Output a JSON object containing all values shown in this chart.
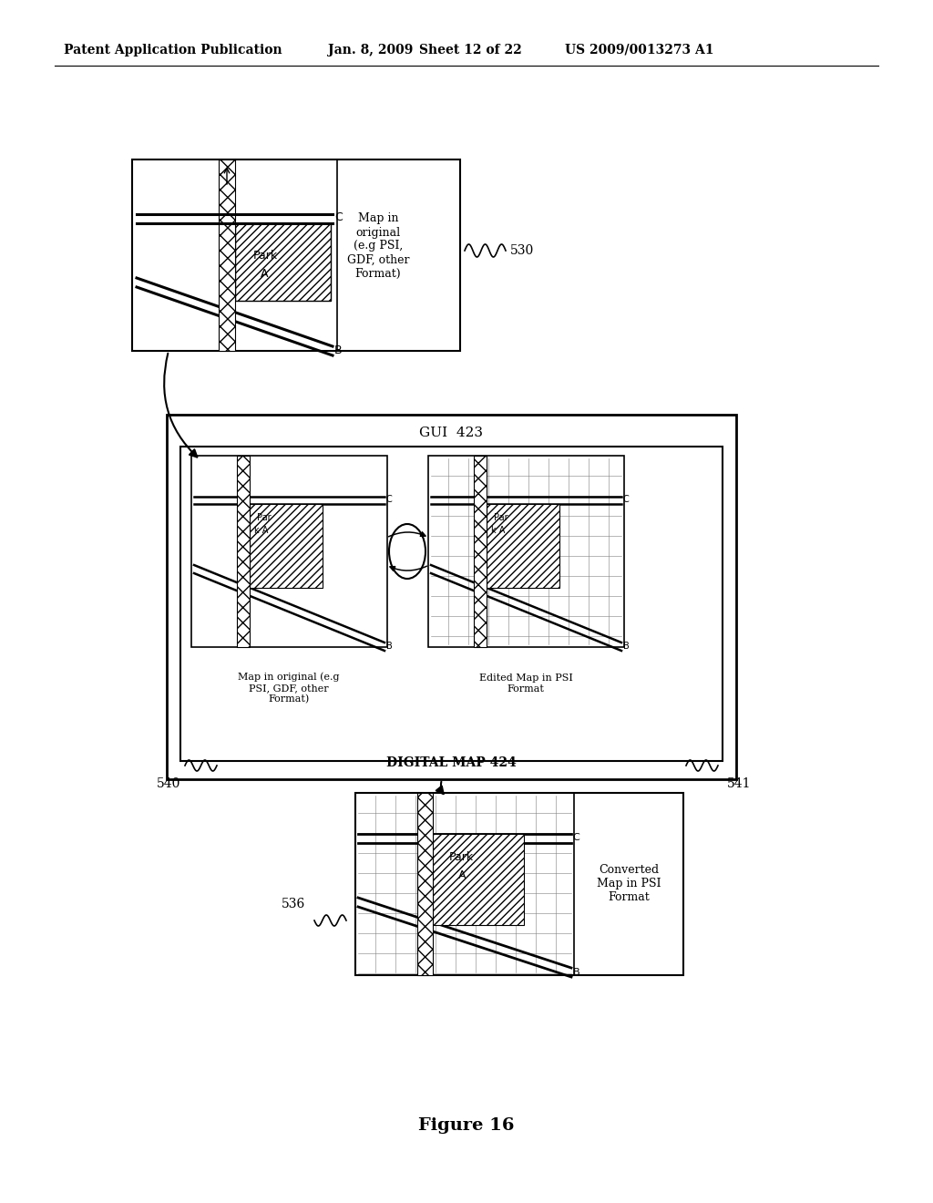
{
  "bg_color": "#ffffff",
  "header_text": "Patent Application Publication",
  "header_date": "Jan. 8, 2009",
  "header_sheet": "Sheet 12 of 22",
  "header_patent": "US 2009/0013273 A1",
  "figure_label": "Figure 16",
  "label_530": "530",
  "label_540": "540",
  "label_541": "541",
  "label_536": "536",
  "label_gui": "GUI  423",
  "label_digital_map": "DIGITAL MAP 424",
  "box1_text": "Map in\noriginal\n(e.g PSI,\nGDF, other\nFormat)",
  "box_original_text": "Map in original (e.g\nPSI, GDF, other\nFormat)",
  "box_edited_text": "Edited Map in PSI\nFormat",
  "converted_text": "Converted\nMap in PSI\nFormat"
}
